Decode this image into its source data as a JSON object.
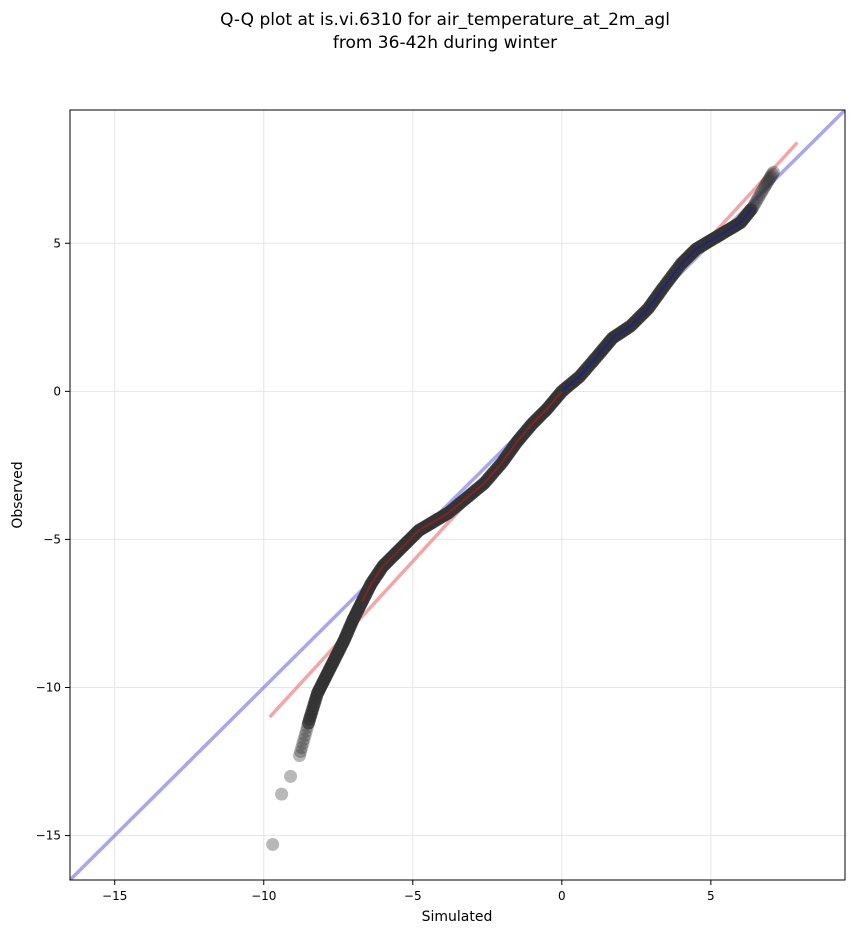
{
  "chart_data": {
    "type": "scatter",
    "title": [
      "Q-Q plot at is.vi.6310 for air_temperature_at_2m_agl",
      "from 36-42h during winter"
    ],
    "xlabel": "Simulated",
    "ylabel": "Observed",
    "xlim": [
      -16.5,
      9.5
    ],
    "ylim": [
      -16.5,
      9.5
    ],
    "grid": true,
    "xticks": [
      -15,
      -10,
      -5,
      0,
      5
    ],
    "yticks": [
      -15,
      -10,
      -5,
      0,
      5
    ],
    "xtick_labels": [
      "−15",
      "−10",
      "−5",
      "0",
      "5"
    ],
    "ytick_labels": [
      "−15",
      "−10",
      "−5",
      "0",
      "5"
    ],
    "reference_lines": [
      {
        "kind": "one-to-one",
        "color": "#7777ee",
        "x": [
          -16.5,
          9.5
        ],
        "y": [
          -16.5,
          9.5
        ]
      },
      {
        "kind": "fit",
        "color": "#ee7777",
        "x": [
          -9.8,
          7.9
        ],
        "y": [
          -11.0,
          8.4
        ]
      }
    ],
    "point_color": "#333333",
    "center_line_colors": {
      "upper": "#1a1aaa",
      "lower": "#aa1a1a"
    },
    "curve": {
      "x": [
        -9.7,
        -9.4,
        -9.1,
        -8.8,
        -8.5,
        -8.2,
        -7.9,
        -7.6,
        -7.3,
        -7.0,
        -6.7,
        -6.4,
        -6.0,
        -5.6,
        -5.2,
        -4.8,
        -4.3,
        -3.8,
        -3.2,
        -2.6,
        -2.0,
        -1.5,
        -1.0,
        -0.5,
        0.0,
        0.6,
        1.2,
        1.7,
        2.3,
        2.9,
        3.4,
        4.0,
        4.5,
        5.0,
        5.5,
        6.0,
        6.4,
        6.8,
        7.1
      ],
      "y": [
        -15.3,
        -13.6,
        -13.0,
        -12.3,
        -11.2,
        -10.2,
        -9.6,
        -9.0,
        -8.4,
        -7.7,
        -7.1,
        -6.5,
        -5.9,
        -5.5,
        -5.1,
        -4.7,
        -4.4,
        -4.1,
        -3.6,
        -3.1,
        -2.4,
        -1.7,
        -1.1,
        -0.6,
        0.0,
        0.5,
        1.2,
        1.8,
        2.2,
        2.8,
        3.5,
        4.3,
        4.8,
        5.1,
        5.4,
        5.7,
        6.2,
        6.9,
        7.4
      ]
    }
  }
}
